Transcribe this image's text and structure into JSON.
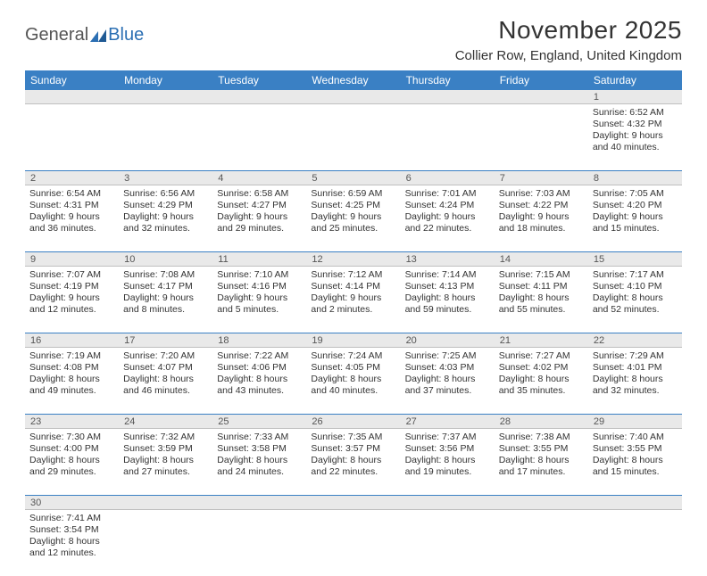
{
  "logo": {
    "part1": "General",
    "part2": "Blue"
  },
  "title": "November 2025",
  "location": "Collier Row, England, United Kingdom",
  "colors": {
    "header_bg": "#3a80c4",
    "header_text": "#ffffff",
    "daynum_bg": "#e9e9e9",
    "row_border": "#3a80c4",
    "text": "#333333",
    "logo_gray": "#555555",
    "logo_blue": "#2b6fb3"
  },
  "weekdays": [
    "Sunday",
    "Monday",
    "Tuesday",
    "Wednesday",
    "Thursday",
    "Friday",
    "Saturday"
  ],
  "weeks": [
    {
      "nums": [
        "",
        "",
        "",
        "",
        "",
        "",
        "1"
      ],
      "cells": [
        null,
        null,
        null,
        null,
        null,
        null,
        {
          "sunrise": "Sunrise: 6:52 AM",
          "sunset": "Sunset: 4:32 PM",
          "daylight": "Daylight: 9 hours and 40 minutes."
        }
      ]
    },
    {
      "nums": [
        "2",
        "3",
        "4",
        "5",
        "6",
        "7",
        "8"
      ],
      "cells": [
        {
          "sunrise": "Sunrise: 6:54 AM",
          "sunset": "Sunset: 4:31 PM",
          "daylight": "Daylight: 9 hours and 36 minutes."
        },
        {
          "sunrise": "Sunrise: 6:56 AM",
          "sunset": "Sunset: 4:29 PM",
          "daylight": "Daylight: 9 hours and 32 minutes."
        },
        {
          "sunrise": "Sunrise: 6:58 AM",
          "sunset": "Sunset: 4:27 PM",
          "daylight": "Daylight: 9 hours and 29 minutes."
        },
        {
          "sunrise": "Sunrise: 6:59 AM",
          "sunset": "Sunset: 4:25 PM",
          "daylight": "Daylight: 9 hours and 25 minutes."
        },
        {
          "sunrise": "Sunrise: 7:01 AM",
          "sunset": "Sunset: 4:24 PM",
          "daylight": "Daylight: 9 hours and 22 minutes."
        },
        {
          "sunrise": "Sunrise: 7:03 AM",
          "sunset": "Sunset: 4:22 PM",
          "daylight": "Daylight: 9 hours and 18 minutes."
        },
        {
          "sunrise": "Sunrise: 7:05 AM",
          "sunset": "Sunset: 4:20 PM",
          "daylight": "Daylight: 9 hours and 15 minutes."
        }
      ]
    },
    {
      "nums": [
        "9",
        "10",
        "11",
        "12",
        "13",
        "14",
        "15"
      ],
      "cells": [
        {
          "sunrise": "Sunrise: 7:07 AM",
          "sunset": "Sunset: 4:19 PM",
          "daylight": "Daylight: 9 hours and 12 minutes."
        },
        {
          "sunrise": "Sunrise: 7:08 AM",
          "sunset": "Sunset: 4:17 PM",
          "daylight": "Daylight: 9 hours and 8 minutes."
        },
        {
          "sunrise": "Sunrise: 7:10 AM",
          "sunset": "Sunset: 4:16 PM",
          "daylight": "Daylight: 9 hours and 5 minutes."
        },
        {
          "sunrise": "Sunrise: 7:12 AM",
          "sunset": "Sunset: 4:14 PM",
          "daylight": "Daylight: 9 hours and 2 minutes."
        },
        {
          "sunrise": "Sunrise: 7:14 AM",
          "sunset": "Sunset: 4:13 PM",
          "daylight": "Daylight: 8 hours and 59 minutes."
        },
        {
          "sunrise": "Sunrise: 7:15 AM",
          "sunset": "Sunset: 4:11 PM",
          "daylight": "Daylight: 8 hours and 55 minutes."
        },
        {
          "sunrise": "Sunrise: 7:17 AM",
          "sunset": "Sunset: 4:10 PM",
          "daylight": "Daylight: 8 hours and 52 minutes."
        }
      ]
    },
    {
      "nums": [
        "16",
        "17",
        "18",
        "19",
        "20",
        "21",
        "22"
      ],
      "cells": [
        {
          "sunrise": "Sunrise: 7:19 AM",
          "sunset": "Sunset: 4:08 PM",
          "daylight": "Daylight: 8 hours and 49 minutes."
        },
        {
          "sunrise": "Sunrise: 7:20 AM",
          "sunset": "Sunset: 4:07 PM",
          "daylight": "Daylight: 8 hours and 46 minutes."
        },
        {
          "sunrise": "Sunrise: 7:22 AM",
          "sunset": "Sunset: 4:06 PM",
          "daylight": "Daylight: 8 hours and 43 minutes."
        },
        {
          "sunrise": "Sunrise: 7:24 AM",
          "sunset": "Sunset: 4:05 PM",
          "daylight": "Daylight: 8 hours and 40 minutes."
        },
        {
          "sunrise": "Sunrise: 7:25 AM",
          "sunset": "Sunset: 4:03 PM",
          "daylight": "Daylight: 8 hours and 37 minutes."
        },
        {
          "sunrise": "Sunrise: 7:27 AM",
          "sunset": "Sunset: 4:02 PM",
          "daylight": "Daylight: 8 hours and 35 minutes."
        },
        {
          "sunrise": "Sunrise: 7:29 AM",
          "sunset": "Sunset: 4:01 PM",
          "daylight": "Daylight: 8 hours and 32 minutes."
        }
      ]
    },
    {
      "nums": [
        "23",
        "24",
        "25",
        "26",
        "27",
        "28",
        "29"
      ],
      "cells": [
        {
          "sunrise": "Sunrise: 7:30 AM",
          "sunset": "Sunset: 4:00 PM",
          "daylight": "Daylight: 8 hours and 29 minutes."
        },
        {
          "sunrise": "Sunrise: 7:32 AM",
          "sunset": "Sunset: 3:59 PM",
          "daylight": "Daylight: 8 hours and 27 minutes."
        },
        {
          "sunrise": "Sunrise: 7:33 AM",
          "sunset": "Sunset: 3:58 PM",
          "daylight": "Daylight: 8 hours and 24 minutes."
        },
        {
          "sunrise": "Sunrise: 7:35 AM",
          "sunset": "Sunset: 3:57 PM",
          "daylight": "Daylight: 8 hours and 22 minutes."
        },
        {
          "sunrise": "Sunrise: 7:37 AM",
          "sunset": "Sunset: 3:56 PM",
          "daylight": "Daylight: 8 hours and 19 minutes."
        },
        {
          "sunrise": "Sunrise: 7:38 AM",
          "sunset": "Sunset: 3:55 PM",
          "daylight": "Daylight: 8 hours and 17 minutes."
        },
        {
          "sunrise": "Sunrise: 7:40 AM",
          "sunset": "Sunset: 3:55 PM",
          "daylight": "Daylight: 8 hours and 15 minutes."
        }
      ]
    },
    {
      "nums": [
        "30",
        "",
        "",
        "",
        "",
        "",
        ""
      ],
      "cells": [
        {
          "sunrise": "Sunrise: 7:41 AM",
          "sunset": "Sunset: 3:54 PM",
          "daylight": "Daylight: 8 hours and 12 minutes."
        },
        null,
        null,
        null,
        null,
        null,
        null
      ]
    }
  ]
}
